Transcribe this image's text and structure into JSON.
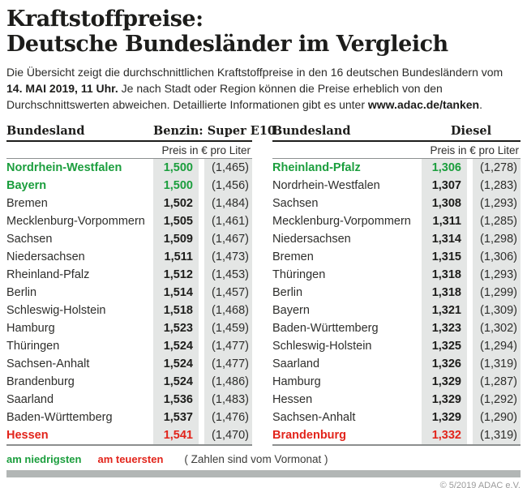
{
  "colors": {
    "green": "#1b9e3d",
    "red": "#e2241b",
    "band_gray": "#e4e6e5",
    "bar_gray": "#b2b6b5"
  },
  "header": {
    "title_line1": "Kraftstoffpreise:",
    "title_line2": "Deutsche Bundesländer im Vergleich",
    "intro_part1": "Die Übersicht zeigt die durchschnittlichen Kraftstoffpreise in den 16 deutschen Bundesländern vom ",
    "intro_bold1": "14. MAI 2019, 11 Uhr.",
    "intro_part2": " Je nach Stadt oder Region können die Preise erheblich von den Durchschnittswerten abweichen. Detaillierte Informationen gibt es unter ",
    "intro_bold2": "www.adac.de/tanken",
    "intro_part3": "."
  },
  "tables": [
    {
      "col_state": "Bundesland",
      "col_fuel": "Benzin: Super E10",
      "col_unit": "Preis in € pro Liter",
      "rows": [
        {
          "state": "Nordrhein-Westfalen",
          "price": "1,500",
          "prev": "(1,465)",
          "highlight": "green"
        },
        {
          "state": "Bayern",
          "price": "1,500",
          "prev": "(1,456)",
          "highlight": "green"
        },
        {
          "state": "Bremen",
          "price": "1,502",
          "prev": "(1,484)",
          "highlight": ""
        },
        {
          "state": "Mecklenburg-Vorpommern",
          "price": "1,505",
          "prev": "(1,461)",
          "highlight": ""
        },
        {
          "state": "Sachsen",
          "price": "1,509",
          "prev": "(1,467)",
          "highlight": ""
        },
        {
          "state": "Niedersachsen",
          "price": "1,511",
          "prev": "(1,473)",
          "highlight": ""
        },
        {
          "state": "Rheinland-Pfalz",
          "price": "1,512",
          "prev": "(1,453)",
          "highlight": ""
        },
        {
          "state": "Berlin",
          "price": "1,514",
          "prev": "(1,457)",
          "highlight": ""
        },
        {
          "state": "Schleswig-Holstein",
          "price": "1,518",
          "prev": "(1,468)",
          "highlight": ""
        },
        {
          "state": "Hamburg",
          "price": "1,523",
          "prev": "(1,459)",
          "highlight": ""
        },
        {
          "state": "Thüringen",
          "price": "1,524",
          "prev": "(1,477)",
          "highlight": ""
        },
        {
          "state": "Sachsen-Anhalt",
          "price": "1,524",
          "prev": "(1,477)",
          "highlight": ""
        },
        {
          "state": "Brandenburg",
          "price": "1,524",
          "prev": "(1,486)",
          "highlight": ""
        },
        {
          "state": "Saarland",
          "price": "1,536",
          "prev": "(1,483)",
          "highlight": ""
        },
        {
          "state": "Baden-Württemberg",
          "price": "1,537",
          "prev": "(1,476)",
          "highlight": ""
        },
        {
          "state": "Hessen",
          "price": "1,541",
          "prev": "(1,470)",
          "highlight": "red"
        }
      ]
    },
    {
      "col_state": "Bundesland",
      "col_fuel": "Diesel",
      "col_unit": "Preis in € pro Liter",
      "rows": [
        {
          "state": "Rheinland-Pfalz",
          "price": "1,306",
          "prev": "(1,278)",
          "highlight": "green"
        },
        {
          "state": "Nordrhein-Westfalen",
          "price": "1,307",
          "prev": "(1,283)",
          "highlight": ""
        },
        {
          "state": "Sachsen",
          "price": "1,308",
          "prev": "(1,293)",
          "highlight": ""
        },
        {
          "state": "Mecklenburg-Vorpommern",
          "price": "1,311",
          "prev": "(1,285)",
          "highlight": ""
        },
        {
          "state": "Niedersachsen",
          "price": "1,314",
          "prev": "(1,298)",
          "highlight": ""
        },
        {
          "state": "Bremen",
          "price": "1,315",
          "prev": "(1,306)",
          "highlight": ""
        },
        {
          "state": "Thüringen",
          "price": "1,318",
          "prev": "(1,293)",
          "highlight": ""
        },
        {
          "state": "Berlin",
          "price": "1,318",
          "prev": "(1,299)",
          "highlight": ""
        },
        {
          "state": "Bayern",
          "price": "1,321",
          "prev": "(1,309)",
          "highlight": ""
        },
        {
          "state": "Baden-Württemberg",
          "price": "1,323",
          "prev": "(1,302)",
          "highlight": ""
        },
        {
          "state": "Schleswig-Holstein",
          "price": "1,325",
          "prev": "(1,294)",
          "highlight": ""
        },
        {
          "state": "Saarland",
          "price": "1,326",
          "prev": "(1,319)",
          "highlight": ""
        },
        {
          "state": "Hamburg",
          "price": "1,329",
          "prev": "(1,287)",
          "highlight": ""
        },
        {
          "state": "Hessen",
          "price": "1,329",
          "prev": "(1,292)",
          "highlight": ""
        },
        {
          "state": "Sachsen-Anhalt",
          "price": "1,329",
          "prev": "(1,290)",
          "highlight": ""
        },
        {
          "state": "Brandenburg",
          "price": "1,332",
          "prev": "(1,319)",
          "highlight": "red"
        }
      ]
    }
  ],
  "legend": {
    "lowest": "am niedrigsten",
    "highest": "am teuersten",
    "note": "( Zahlen sind vom Vormonat )"
  },
  "footer": {
    "copyright": "© 5/2019 ADAC e.V."
  }
}
